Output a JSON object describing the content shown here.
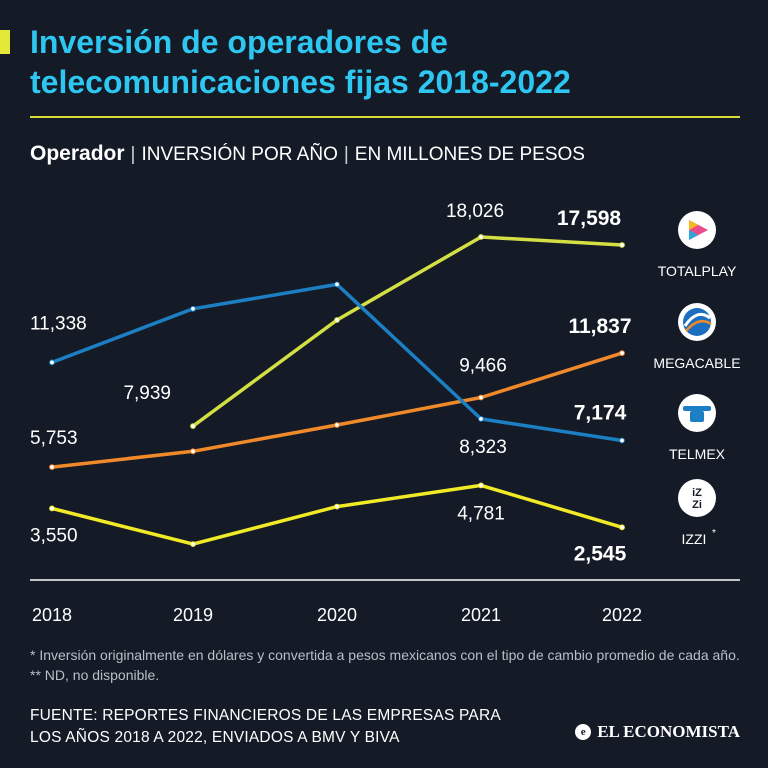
{
  "header": {
    "title": "Inversión de operadores de telecomunicaciones fijas 2018-2022",
    "subtitle_strong": "Operador",
    "subtitle_a": "INVERSIÓN POR AÑO",
    "subtitle_b": "EN MILLONES DE PESOS"
  },
  "chart_data": {
    "type": "line",
    "title": "Inversión de operadores de telecomunicaciones fijas 2018-2022",
    "ylabel": "Millones de pesos",
    "xlabel": "",
    "categories": [
      "2018",
      "2019",
      "2020",
      "2021",
      "2022"
    ],
    "ylim": [
      0,
      20000
    ],
    "grid": false,
    "series": [
      {
        "name": "TOTALPLAY",
        "color": "#d4df43",
        "values": [
          null,
          7939,
          13600,
          18026,
          17598
        ],
        "labels": [
          "",
          "7,939",
          "",
          "18,026",
          "17,598"
        ],
        "icon": "totalplay-logo-icon"
      },
      {
        "name": "MEGACABLE",
        "color": "#f0892a",
        "values": [
          5753,
          6600,
          8000,
          9466,
          11837
        ],
        "labels": [
          "5,753",
          "",
          "",
          "9,466",
          "11,837"
        ],
        "icon": "megacable-logo-icon"
      },
      {
        "name": "TELMEX",
        "color": "#1d7fc3",
        "values": [
          11338,
          14200,
          15500,
          8323,
          7174
        ],
        "labels": [
          "11,338",
          "",
          "",
          "8,323",
          "7,174"
        ],
        "icon": "telmex-logo-icon"
      },
      {
        "name": "IZZI",
        "color": "#f0ea27",
        "values": [
          3550,
          1650,
          3650,
          4781,
          2545
        ],
        "labels": [
          "3,550",
          "",
          "",
          "4,781",
          "2,545"
        ],
        "icon": "izzi-logo-icon",
        "footnote_mark": "*"
      }
    ],
    "legend": "right"
  },
  "footer": {
    "note": "* Inversión originalmente en dólares y convertida a pesos mexicanos con el tipo de cambio promedio de cada año. ** ND, no disponible.",
    "source": "FUENTE: REPORTES FINANCIEROS DE LAS EMPRESAS PARA LOS AÑOS 2018 A 2022, ENVIADOS A BMV Y BIVA",
    "brand": "EL ECONOMISTA"
  },
  "colors": {
    "background": "#141b26",
    "title": "#2ec7f2",
    "accent": "#e6e837"
  }
}
